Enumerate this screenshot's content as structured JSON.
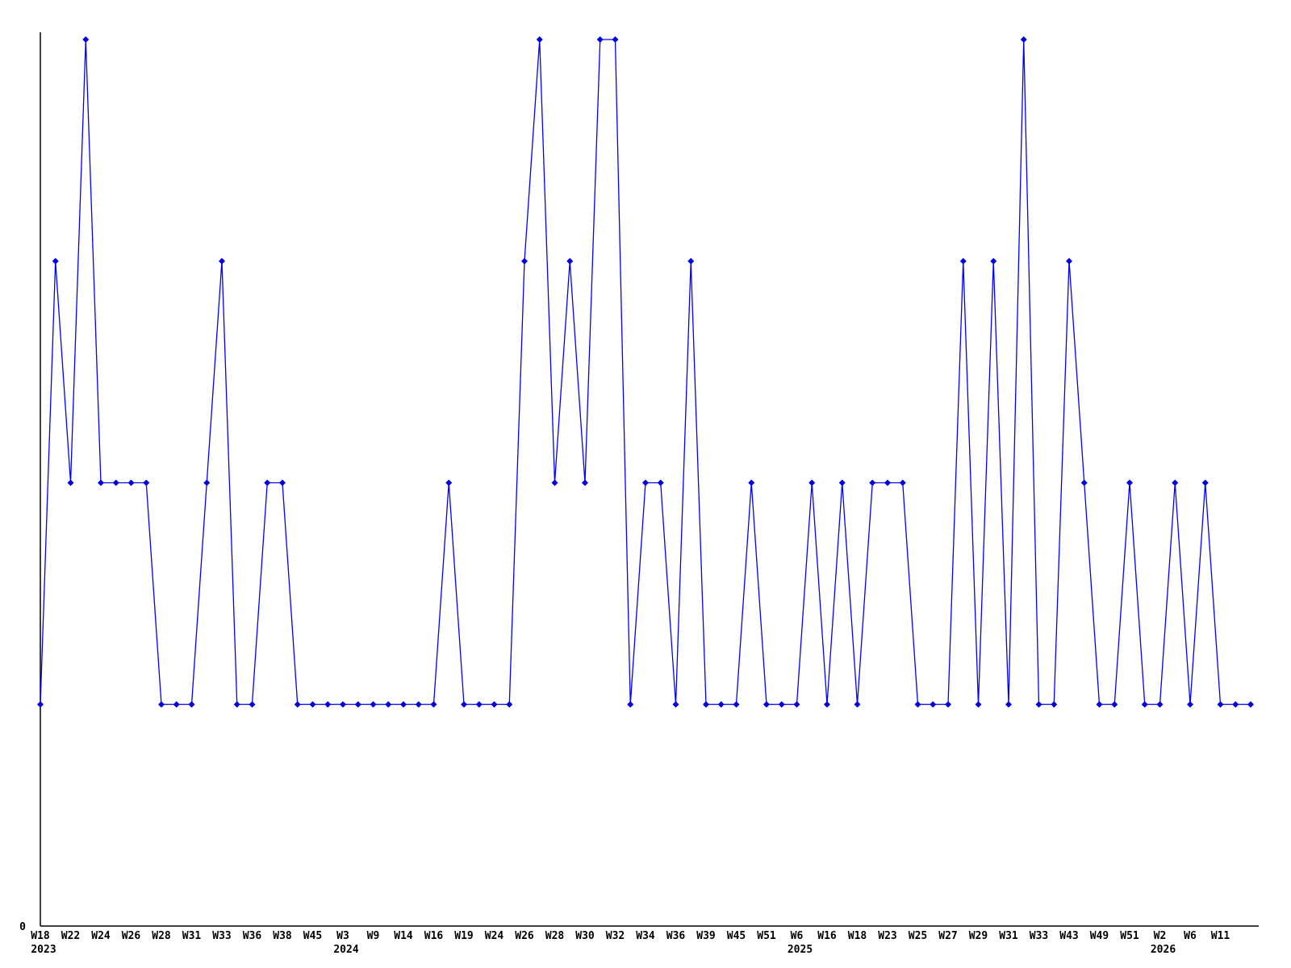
{
  "page": {
    "background": "#ffffff"
  },
  "chart_data": {
    "type": "line",
    "title": "",
    "xlabel": "",
    "ylabel": "",
    "legend": false,
    "grid": false,
    "marker": "diamond",
    "y_tick_labels": [
      "0"
    ],
    "ylim": [
      0,
      4.1
    ],
    "colors": {
      "line": "#0000ff",
      "marker": "#0000e0",
      "axis": "#000000",
      "text": "#000000",
      "background": "#ffffff"
    },
    "values": [
      1,
      3,
      2,
      4,
      2,
      2,
      2,
      2,
      1,
      1,
      1,
      2,
      3,
      1,
      1,
      2,
      2,
      1,
      1,
      1,
      1,
      1,
      1,
      1,
      1,
      1,
      1,
      2,
      1,
      1,
      1,
      1,
      3,
      4,
      2,
      3,
      2,
      4,
      4,
      1,
      2,
      2,
      1,
      3,
      1,
      1,
      1,
      2,
      1,
      1,
      1,
      2,
      1,
      2,
      1,
      2,
      2,
      2,
      1,
      1,
      1,
      3,
      1,
      3,
      1,
      4,
      1,
      1,
      3,
      2,
      1,
      1,
      2,
      1,
      1,
      2,
      1,
      2,
      1,
      1,
      1
    ],
    "x_tick_labels": [
      {
        "i": 0,
        "week": "W18",
        "year": "2023"
      },
      {
        "i": 2,
        "week": "W22"
      },
      {
        "i": 4,
        "week": "W24"
      },
      {
        "i": 6,
        "week": "W26"
      },
      {
        "i": 8,
        "week": "W28"
      },
      {
        "i": 10,
        "week": "W31"
      },
      {
        "i": 12,
        "week": "W33"
      },
      {
        "i": 14,
        "week": "W36"
      },
      {
        "i": 16,
        "week": "W38"
      },
      {
        "i": 18,
        "week": "W45"
      },
      {
        "i": 20,
        "week": "W3",
        "year": "2024"
      },
      {
        "i": 22,
        "week": "W9"
      },
      {
        "i": 24,
        "week": "W14"
      },
      {
        "i": 26,
        "week": "W16"
      },
      {
        "i": 28,
        "week": "W19"
      },
      {
        "i": 30,
        "week": "W24"
      },
      {
        "i": 32,
        "week": "W26"
      },
      {
        "i": 34,
        "week": "W28"
      },
      {
        "i": 36,
        "week": "W30"
      },
      {
        "i": 38,
        "week": "W32"
      },
      {
        "i": 40,
        "week": "W34"
      },
      {
        "i": 42,
        "week": "W36"
      },
      {
        "i": 44,
        "week": "W39"
      },
      {
        "i": 46,
        "week": "W45"
      },
      {
        "i": 48,
        "week": "W51"
      },
      {
        "i": 50,
        "week": "W6",
        "year": "2025"
      },
      {
        "i": 52,
        "week": "W16"
      },
      {
        "i": 54,
        "week": "W18"
      },
      {
        "i": 56,
        "week": "W23"
      },
      {
        "i": 58,
        "week": "W25"
      },
      {
        "i": 60,
        "week": "W27"
      },
      {
        "i": 62,
        "week": "W29"
      },
      {
        "i": 64,
        "week": "W31"
      },
      {
        "i": 66,
        "week": "W33"
      },
      {
        "i": 68,
        "week": "W43"
      },
      {
        "i": 70,
        "week": "W49"
      },
      {
        "i": 72,
        "week": "W51"
      },
      {
        "i": 74,
        "week": "W2",
        "year": "2026"
      },
      {
        "i": 76,
        "week": "W6"
      },
      {
        "i": 78,
        "week": "W11"
      }
    ]
  }
}
